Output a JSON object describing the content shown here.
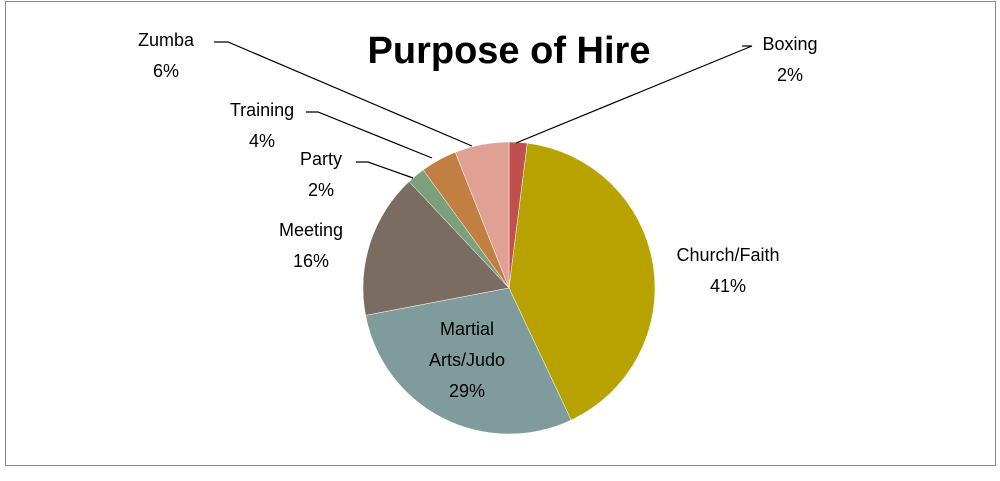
{
  "chart_data": {
    "type": "pie",
    "title": "Purpose of Hire",
    "categories": [
      "Boxing",
      "Church/Faith",
      "Martial Arts/Judo",
      "Meeting",
      "Party",
      "Training",
      "Zumba"
    ],
    "values": [
      2,
      41,
      29,
      16,
      2,
      4,
      6
    ],
    "value_labels": [
      "2%",
      "41%",
      "29%",
      "16%",
      "2%",
      "4%",
      "6%"
    ],
    "colors": [
      "#c0504d",
      "#b8a200",
      "#7f9b9b",
      "#7a6c61",
      "#7ba07c",
      "#c27f42",
      "#e1a094"
    ]
  }
}
